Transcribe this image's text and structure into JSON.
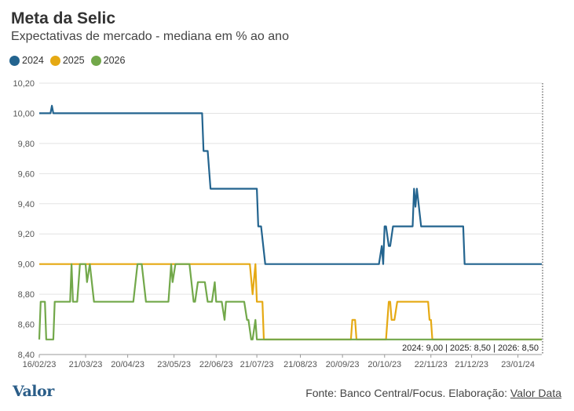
{
  "title": "Meta da Selic",
  "subtitle": "Expectativas de mercado - mediana em % ao ano",
  "legend": [
    {
      "name": "2024",
      "color": "#23648f"
    },
    {
      "name": "2025",
      "color": "#e5a913"
    },
    {
      "name": "2026",
      "color": "#72a84a"
    }
  ],
  "annotation": "2024: 9,00 | 2025: 8,50 | 2026: 8,50",
  "footer": {
    "logo": "Valor",
    "source": "Fonte: Banco Central/Focus. Elaboração: ",
    "source_link": "Valor Data"
  },
  "chart_data": {
    "type": "line",
    "title": "Meta da Selic",
    "subtitle": "Expectativas de mercado - mediana em % ao ano",
    "ylim": [
      8.4,
      10.2
    ],
    "yticks": [
      "8,40",
      "8,60",
      "8,80",
      "9,00",
      "9,20",
      "9,40",
      "9,60",
      "9,80",
      "10,00",
      "10,20"
    ],
    "xticks": [
      "16/02/23",
      "21/03/23",
      "20/04/23",
      "23/05/23",
      "22/06/23",
      "21/07/23",
      "21/08/23",
      "20/09/23",
      "20/10/23",
      "22/11/23",
      "21/12/23",
      "23/01/24"
    ],
    "grid": true,
    "legend_position": "top-left",
    "series": [
      {
        "name": "2024",
        "color": "#23648f",
        "points": [
          [
            "2023-02-16",
            10.0
          ],
          [
            "2023-02-24",
            10.0
          ],
          [
            "2023-02-25",
            10.05
          ],
          [
            "2023-02-26",
            10.0
          ],
          [
            "2023-06-12",
            10.0
          ],
          [
            "2023-06-13",
            9.75
          ],
          [
            "2023-06-16",
            9.75
          ],
          [
            "2023-06-18",
            9.5
          ],
          [
            "2023-07-21",
            9.5
          ],
          [
            "2023-07-22",
            9.25
          ],
          [
            "2023-07-24",
            9.25
          ],
          [
            "2023-07-27",
            9.0
          ],
          [
            "2023-10-16",
            9.0
          ],
          [
            "2023-10-18",
            9.12
          ],
          [
            "2023-10-19",
            9.0
          ],
          [
            "2023-10-20",
            9.25
          ],
          [
            "2023-10-21",
            9.25
          ],
          [
            "2023-10-23",
            9.12
          ],
          [
            "2023-10-24",
            9.12
          ],
          [
            "2023-10-26",
            9.25
          ],
          [
            "2023-11-09",
            9.25
          ],
          [
            "2023-11-10",
            9.5
          ],
          [
            "2023-11-11",
            9.38
          ],
          [
            "2023-11-12",
            9.5
          ],
          [
            "2023-11-15",
            9.25
          ],
          [
            "2023-12-15",
            9.25
          ],
          [
            "2023-12-16",
            9.0
          ],
          [
            "2024-02-09",
            9.0
          ]
        ]
      },
      {
        "name": "2025",
        "color": "#e5a913",
        "points": [
          [
            "2023-02-16",
            9.0
          ],
          [
            "2023-07-16",
            9.0
          ],
          [
            "2023-07-18",
            8.8
          ],
          [
            "2023-07-20",
            9.0
          ],
          [
            "2023-07-21",
            8.75
          ],
          [
            "2023-07-25",
            8.75
          ],
          [
            "2023-07-26",
            8.5
          ],
          [
            "2023-09-26",
            8.5
          ],
          [
            "2023-09-27",
            8.63
          ],
          [
            "2023-09-29",
            8.63
          ],
          [
            "2023-09-30",
            8.5
          ],
          [
            "2023-10-21",
            8.5
          ],
          [
            "2023-10-23",
            8.75
          ],
          [
            "2023-10-24",
            8.75
          ],
          [
            "2023-10-25",
            8.63
          ],
          [
            "2023-10-27",
            8.63
          ],
          [
            "2023-10-29",
            8.75
          ],
          [
            "2023-11-20",
            8.75
          ],
          [
            "2023-11-21",
            8.63
          ],
          [
            "2023-11-22",
            8.63
          ],
          [
            "2023-11-23",
            8.5
          ],
          [
            "2024-02-09",
            8.5
          ]
        ]
      },
      {
        "name": "2026",
        "color": "#72a84a",
        "points": [
          [
            "2023-02-16",
            8.5
          ],
          [
            "2023-02-17",
            8.75
          ],
          [
            "2023-02-20",
            8.75
          ],
          [
            "2023-02-21",
            8.5
          ],
          [
            "2023-02-26",
            8.5
          ],
          [
            "2023-02-27",
            8.75
          ],
          [
            "2023-03-10",
            8.75
          ],
          [
            "2023-03-11",
            9.0
          ],
          [
            "2023-03-12",
            8.75
          ],
          [
            "2023-03-15",
            8.75
          ],
          [
            "2023-03-17",
            9.0
          ],
          [
            "2023-03-21",
            9.0
          ],
          [
            "2023-03-22",
            8.88
          ],
          [
            "2023-03-24",
            9.0
          ],
          [
            "2023-03-27",
            8.75
          ],
          [
            "2023-04-24",
            8.75
          ],
          [
            "2023-04-27",
            9.0
          ],
          [
            "2023-04-30",
            9.0
          ],
          [
            "2023-05-03",
            8.75
          ],
          [
            "2023-05-19",
            8.75
          ],
          [
            "2023-05-21",
            9.0
          ],
          [
            "2023-05-22",
            8.88
          ],
          [
            "2023-05-24",
            9.0
          ],
          [
            "2023-06-03",
            9.0
          ],
          [
            "2023-06-06",
            8.75
          ],
          [
            "2023-06-07",
            8.75
          ],
          [
            "2023-06-09",
            8.88
          ],
          [
            "2023-06-14",
            8.88
          ],
          [
            "2023-06-16",
            8.75
          ],
          [
            "2023-06-19",
            8.75
          ],
          [
            "2023-06-21",
            8.88
          ],
          [
            "2023-06-22",
            8.75
          ],
          [
            "2023-06-26",
            8.75
          ],
          [
            "2023-06-28",
            8.63
          ],
          [
            "2023-06-29",
            8.75
          ],
          [
            "2023-07-12",
            8.75
          ],
          [
            "2023-07-14",
            8.63
          ],
          [
            "2023-07-15",
            8.63
          ],
          [
            "2023-07-17",
            8.5
          ],
          [
            "2023-07-18",
            8.5
          ],
          [
            "2023-07-20",
            8.63
          ],
          [
            "2023-07-21",
            8.5
          ],
          [
            "2024-02-09",
            8.5
          ]
        ]
      }
    ]
  }
}
